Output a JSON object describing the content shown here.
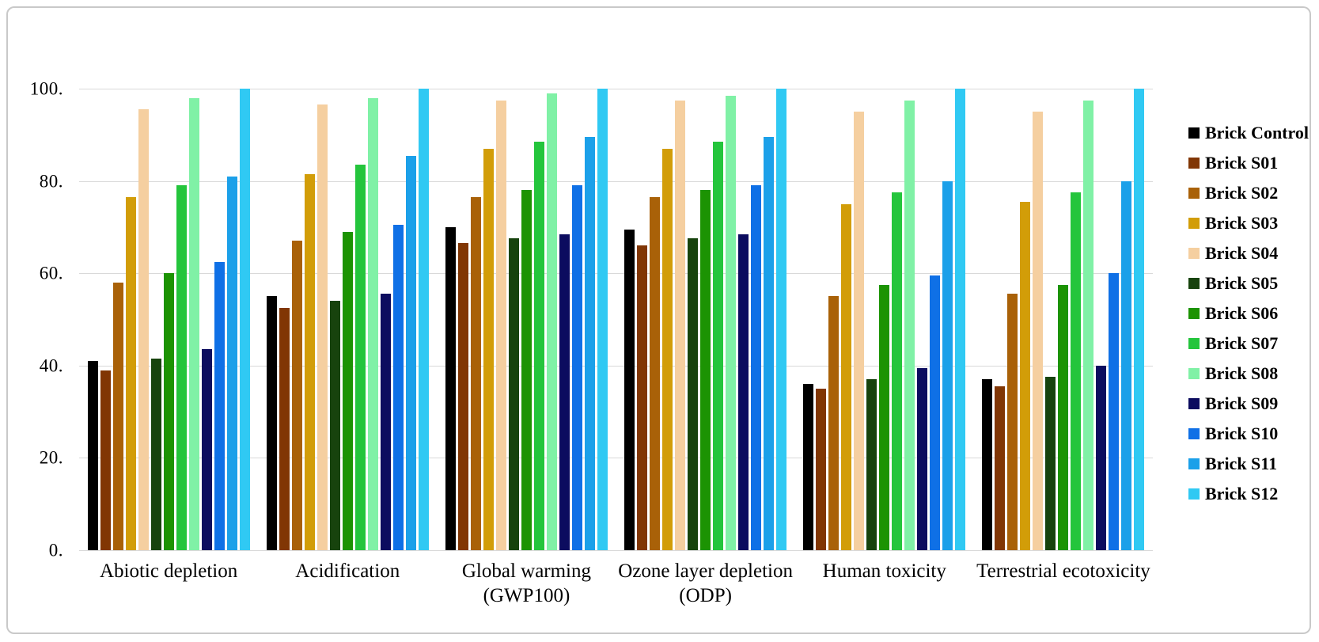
{
  "chart_data": {
    "type": "bar",
    "title": "",
    "categories": [
      "Abiotic depletion",
      "Acidification",
      "Global warming\n(GWP100)",
      "Ozone layer depletion\n(ODP)",
      "Human toxicity",
      "Terrestrial ecotoxicity"
    ],
    "series": [
      {
        "name": "Brick Control",
        "color": "#000000",
        "values": [
          41,
          55,
          70,
          69.5,
          36,
          37
        ]
      },
      {
        "name": "Brick S01",
        "color": "#813604",
        "values": [
          39,
          52.5,
          66.5,
          66,
          35,
          35.5
        ]
      },
      {
        "name": "Brick S02",
        "color": "#A96108",
        "values": [
          58,
          67,
          76.5,
          76.5,
          55,
          55.5
        ]
      },
      {
        "name": "Brick S03",
        "color": "#D29D08",
        "values": [
          76.5,
          81.5,
          87,
          87,
          75,
          75.5
        ]
      },
      {
        "name": "Brick S04",
        "color": "#F5CFA0",
        "values": [
          95.5,
          96.5,
          97.5,
          97.5,
          95,
          95
        ]
      },
      {
        "name": "Brick S05",
        "color": "#17430D",
        "values": [
          41.5,
          54,
          67.5,
          67.5,
          37,
          37.5
        ]
      },
      {
        "name": "Brick S06",
        "color": "#1C9303",
        "values": [
          60,
          69,
          78,
          78,
          57.5,
          57.5
        ]
      },
      {
        "name": "Brick S07",
        "color": "#24C53C",
        "values": [
          79,
          83.5,
          88.5,
          88.5,
          77.5,
          77.5
        ]
      },
      {
        "name": "Brick S08",
        "color": "#80F1A6",
        "values": [
          98,
          98,
          99,
          98.5,
          97.5,
          97.5
        ]
      },
      {
        "name": "Brick S09",
        "color": "#0C0C5F",
        "values": [
          43.5,
          55.5,
          68.5,
          68.5,
          39.5,
          40
        ]
      },
      {
        "name": "Brick S10",
        "color": "#0F70E6",
        "values": [
          62.5,
          70.5,
          79,
          79,
          59.5,
          60
        ]
      },
      {
        "name": "Brick S11",
        "color": "#1BA0E9",
        "values": [
          81,
          85.5,
          89.5,
          89.5,
          80,
          80
        ]
      },
      {
        "name": "Brick S12",
        "color": "#30C9F3",
        "values": [
          100,
          100,
          100,
          100,
          100,
          100
        ]
      }
    ],
    "y_ticks": [
      "0.",
      "20.",
      "40.",
      "60.",
      "80.",
      "100."
    ],
    "y_tick_values": [
      0,
      20,
      40,
      60,
      80,
      100
    ],
    "ylim": [
      0,
      100
    ],
    "grid": true,
    "legend_position": "right"
  }
}
